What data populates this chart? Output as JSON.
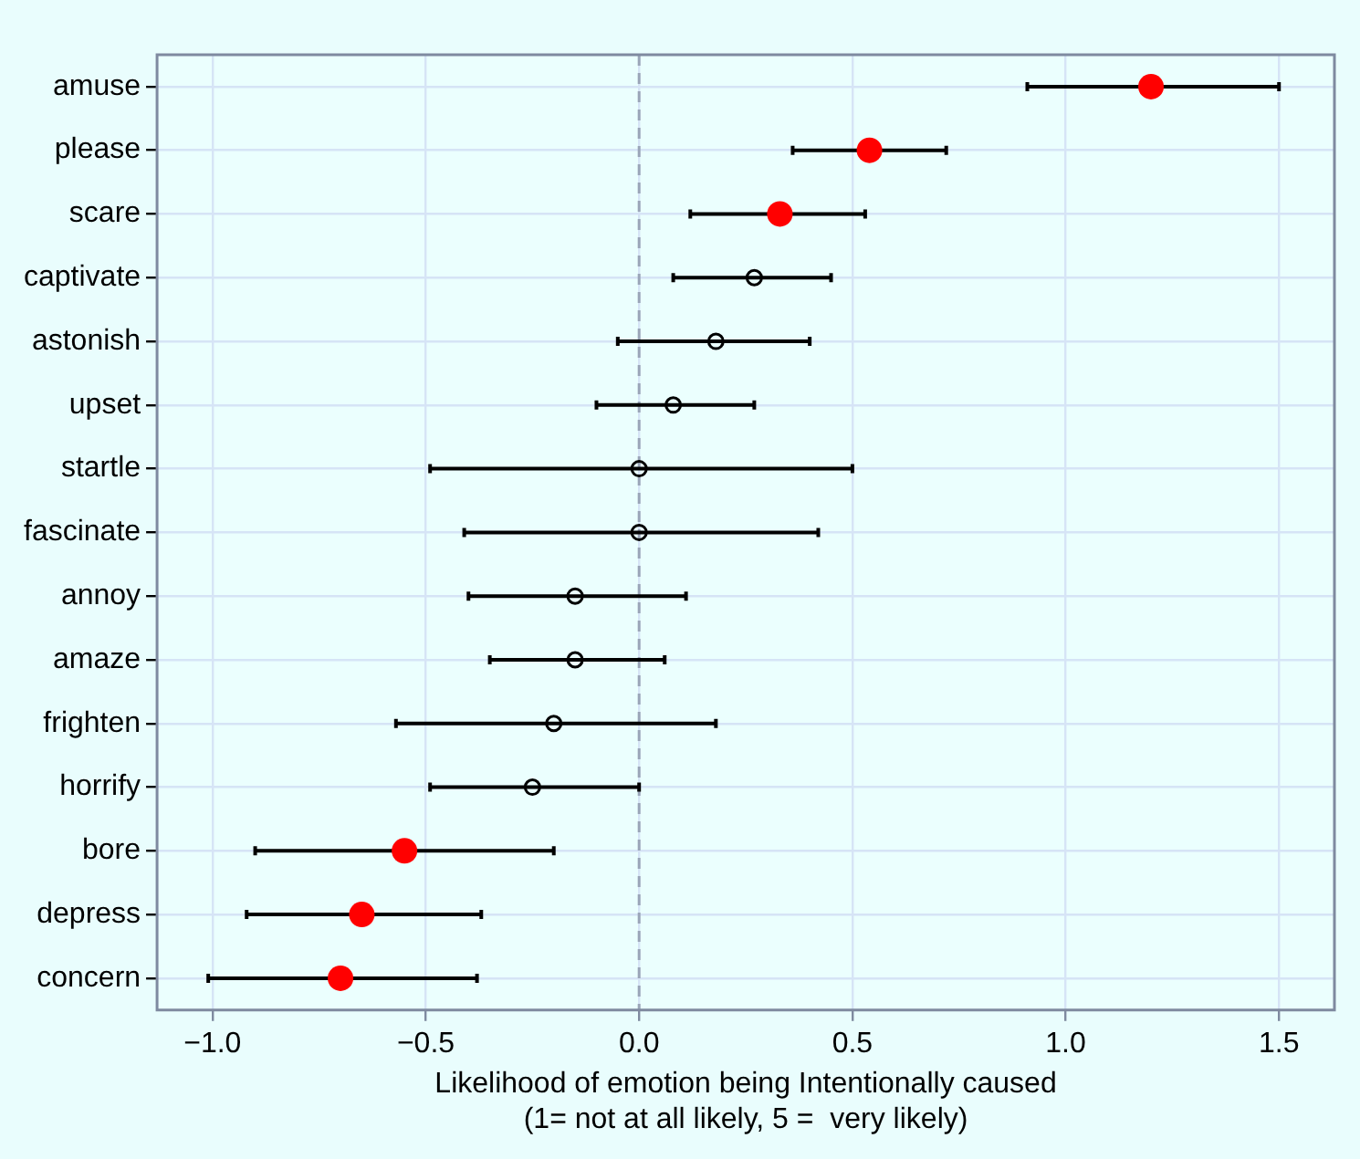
{
  "chart_data": {
    "type": "scatter",
    "categories": [
      "amuse",
      "please",
      "scare",
      "captivate",
      "astonish",
      "upset",
      "startle",
      "fascinate",
      "annoy",
      "amaze",
      "frighten",
      "horrify",
      "bore",
      "depress",
      "concern"
    ],
    "orientation": "horizontal",
    "series": [
      {
        "color": "#ff0000",
        "values": [
          1.2,
          0.54,
          0.33,
          null,
          null,
          null,
          null,
          null,
          null,
          null,
          null,
          null,
          -0.55,
          -0.65,
          -0.7
        ],
        "errors": [
          [
            0.91,
            1.5
          ],
          [
            0.36,
            0.72
          ],
          [
            0.12,
            0.53
          ],
          null,
          null,
          null,
          null,
          null,
          null,
          null,
          null,
          null,
          [
            -0.9,
            -0.2
          ],
          [
            -0.92,
            -0.37
          ],
          [
            -1.01,
            -0.38
          ]
        ]
      },
      {
        "color": "#000000",
        "values": [
          null,
          null,
          null,
          0.27,
          0.18,
          0.08,
          0.0,
          0.0,
          -0.15,
          -0.15,
          -0.2,
          -0.25,
          null,
          null,
          null
        ],
        "errors": [
          null,
          null,
          null,
          [
            0.08,
            0.45
          ],
          [
            -0.05,
            0.4
          ],
          [
            -0.1,
            0.27
          ],
          [
            -0.49,
            0.5
          ],
          [
            -0.41,
            0.42
          ],
          [
            -0.4,
            0.11
          ],
          [
            -0.35,
            0.06
          ],
          [
            -0.57,
            0.18
          ],
          [
            -0.49,
            0.0
          ],
          null,
          null,
          null
        ]
      }
    ],
    "xlabel": "Likelihood of emotion being Intentionally caused\n(1= not at all likely, 5 =  very likely)",
    "xlim": [
      -1.13,
      1.63
    ],
    "xticks": [
      {
        "value": -1,
        "label": "−1.0"
      },
      {
        "value": -0.5,
        "label": "−0.5"
      },
      {
        "value": 0,
        "label": "0.0"
      },
      {
        "value": 0.5,
        "label": "0.5"
      },
      {
        "value": 1,
        "label": "1.0"
      },
      {
        "value": 1.5,
        "label": "1.5"
      }
    ],
    "ref_lines": [
      {
        "axis": "x",
        "value": 0,
        "color": "#9aa5b8",
        "line_style": "dashed"
      }
    ],
    "grid": true,
    "legend": false,
    "marker": "circle"
  }
}
